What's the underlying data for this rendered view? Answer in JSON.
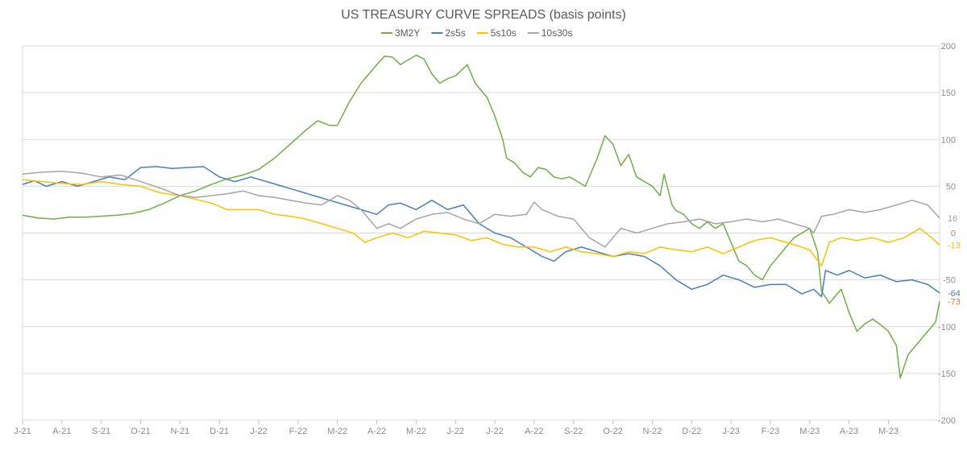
{
  "chart_data": {
    "type": "line",
    "title": "US TREASURY CURVE SPREADS (basis points)",
    "xlabel": "",
    "ylabel": "",
    "ylim": [
      -200,
      200
    ],
    "y_ticks": [
      200,
      150,
      100,
      50,
      0,
      -50,
      -100,
      -150,
      -200
    ],
    "y_axis_side": "right",
    "x_tick_labels": [
      "J-21",
      "A-21",
      "S-21",
      "O-21",
      "N-21",
      "D-21",
      "J-22",
      "F-22",
      "M-22",
      "A-22",
      "M-22",
      "J-22",
      "J-22",
      "A-22",
      "S-22",
      "O-22",
      "N-22",
      "D-22",
      "J-23",
      "F-23",
      "M-23",
      "A-23",
      "M-23"
    ],
    "grid": "horizontal",
    "legend_position": "top",
    "x_index_range": [
      0,
      23.3
    ],
    "series": [
      {
        "name": "3M2Y",
        "color": "#70ad47",
        "end_label": "",
        "points": [
          [
            0,
            19
          ],
          [
            0.4,
            16
          ],
          [
            0.8,
            15
          ],
          [
            1.2,
            17
          ],
          [
            1.6,
            17
          ],
          [
            2,
            18
          ],
          [
            2.4,
            19
          ],
          [
            2.8,
            21
          ],
          [
            3.2,
            25
          ],
          [
            3.6,
            32
          ],
          [
            4,
            40
          ],
          [
            4.4,
            45
          ],
          [
            4.8,
            52
          ],
          [
            5.2,
            58
          ],
          [
            5.6,
            62
          ],
          [
            6,
            68
          ],
          [
            6.4,
            80
          ],
          [
            6.8,
            95
          ],
          [
            7.2,
            110
          ],
          [
            7.5,
            120
          ],
          [
            7.8,
            115
          ],
          [
            8,
            115
          ],
          [
            8.3,
            140
          ],
          [
            8.6,
            160
          ],
          [
            8.8,
            170
          ],
          [
            9,
            180
          ],
          [
            9.2,
            189
          ],
          [
            9.4,
            188
          ],
          [
            9.6,
            180
          ],
          [
            9.8,
            185
          ],
          [
            10,
            190
          ],
          [
            10.2,
            186
          ],
          [
            10.4,
            170
          ],
          [
            10.6,
            160
          ],
          [
            10.8,
            165
          ],
          [
            11,
            168
          ],
          [
            11.3,
            180
          ],
          [
            11.5,
            160
          ],
          [
            11.8,
            145
          ],
          [
            12,
            125
          ],
          [
            12.2,
            100
          ],
          [
            12.3,
            80
          ],
          [
            12.5,
            75
          ],
          [
            12.7,
            65
          ],
          [
            12.9,
            60
          ],
          [
            13.1,
            70
          ],
          [
            13.3,
            68
          ],
          [
            13.5,
            60
          ],
          [
            13.7,
            58
          ],
          [
            13.9,
            60
          ],
          [
            14.1,
            55
          ],
          [
            14.3,
            50
          ],
          [
            14.6,
            80
          ],
          [
            14.8,
            104
          ],
          [
            15,
            95
          ],
          [
            15.2,
            72
          ],
          [
            15.4,
            84
          ],
          [
            15.6,
            60
          ],
          [
            15.8,
            55
          ],
          [
            16,
            50
          ],
          [
            16.2,
            40
          ],
          [
            16.3,
            63
          ],
          [
            16.5,
            30
          ],
          [
            16.6,
            24
          ],
          [
            16.8,
            20
          ],
          [
            17,
            10
          ],
          [
            17.2,
            5
          ],
          [
            17.4,
            12
          ],
          [
            17.6,
            5
          ],
          [
            17.8,
            10
          ],
          [
            18,
            -10
          ],
          [
            18.2,
            -30
          ],
          [
            18.4,
            -35
          ],
          [
            18.6,
            -45
          ],
          [
            18.8,
            -50
          ],
          [
            19,
            -35
          ],
          [
            19.2,
            -25
          ],
          [
            19.4,
            -15
          ],
          [
            19.6,
            -5
          ],
          [
            19.8,
            0
          ],
          [
            20,
            5
          ],
          [
            20.2,
            -20
          ],
          [
            20.3,
            -62
          ],
          [
            20.5,
            -75
          ],
          [
            20.6,
            -70
          ],
          [
            20.8,
            -60
          ],
          [
            21,
            -85
          ],
          [
            21.2,
            -105
          ],
          [
            21.4,
            -97
          ],
          [
            21.6,
            -92
          ],
          [
            21.8,
            -98
          ],
          [
            22,
            -105
          ],
          [
            22.2,
            -120
          ],
          [
            22.3,
            -155
          ],
          [
            22.5,
            -130
          ],
          [
            22.7,
            -120
          ],
          [
            22.9,
            -110
          ],
          [
            23.1,
            -100
          ],
          [
            23.2,
            -95
          ],
          [
            23.3,
            -73
          ]
        ]
      },
      {
        "name": "2s5s",
        "color": "#4a7ebb",
        "end_label": "-64",
        "points": [
          [
            0,
            52
          ],
          [
            0.3,
            56
          ],
          [
            0.6,
            50
          ],
          [
            1,
            55
          ],
          [
            1.4,
            50
          ],
          [
            1.8,
            55
          ],
          [
            2.2,
            60
          ],
          [
            2.6,
            57
          ],
          [
            3,
            70
          ],
          [
            3.4,
            71
          ],
          [
            3.8,
            69
          ],
          [
            4.2,
            70
          ],
          [
            4.6,
            71
          ],
          [
            5,
            60
          ],
          [
            5.4,
            55
          ],
          [
            5.8,
            60
          ],
          [
            6.2,
            55
          ],
          [
            6.6,
            50
          ],
          [
            7,
            45
          ],
          [
            7.4,
            40
          ],
          [
            7.8,
            35
          ],
          [
            8.2,
            30
          ],
          [
            8.6,
            25
          ],
          [
            9,
            20
          ],
          [
            9.3,
            30
          ],
          [
            9.6,
            32
          ],
          [
            10,
            25
          ],
          [
            10.4,
            35
          ],
          [
            10.8,
            25
          ],
          [
            11.2,
            30
          ],
          [
            11.6,
            10
          ],
          [
            12,
            0
          ],
          [
            12.4,
            -5
          ],
          [
            12.8,
            -15
          ],
          [
            13.2,
            -25
          ],
          [
            13.5,
            -30
          ],
          [
            13.8,
            -20
          ],
          [
            14.2,
            -15
          ],
          [
            14.6,
            -20
          ],
          [
            15,
            -25
          ],
          [
            15.4,
            -22
          ],
          [
            15.8,
            -25
          ],
          [
            16.2,
            -35
          ],
          [
            16.6,
            -50
          ],
          [
            17,
            -60
          ],
          [
            17.4,
            -55
          ],
          [
            17.8,
            -45
          ],
          [
            18.2,
            -50
          ],
          [
            18.6,
            -58
          ],
          [
            19,
            -55
          ],
          [
            19.4,
            -55
          ],
          [
            19.8,
            -65
          ],
          [
            20.1,
            -60
          ],
          [
            20.3,
            -68
          ],
          [
            20.4,
            -40
          ],
          [
            20.7,
            -45
          ],
          [
            21,
            -40
          ],
          [
            21.4,
            -48
          ],
          [
            21.8,
            -45
          ],
          [
            22.2,
            -52
          ],
          [
            22.6,
            -50
          ],
          [
            23,
            -55
          ],
          [
            23.3,
            -64
          ]
        ]
      },
      {
        "name": "5s10s",
        "color": "#ffc000",
        "end_label": "-13",
        "points": [
          [
            0,
            57
          ],
          [
            0.5,
            55
          ],
          [
            1,
            53
          ],
          [
            1.5,
            52
          ],
          [
            2,
            55
          ],
          [
            2.5,
            52
          ],
          [
            3,
            50
          ],
          [
            3.5,
            43
          ],
          [
            4,
            40
          ],
          [
            4.4,
            36
          ],
          [
            4.8,
            32
          ],
          [
            5.2,
            25
          ],
          [
            5.6,
            25
          ],
          [
            6,
            25
          ],
          [
            6.4,
            20
          ],
          [
            6.8,
            18
          ],
          [
            7.2,
            15
          ],
          [
            7.6,
            10
          ],
          [
            8,
            5
          ],
          [
            8.4,
            0
          ],
          [
            8.7,
            -10
          ],
          [
            9,
            -5
          ],
          [
            9.4,
            0
          ],
          [
            9.8,
            -5
          ],
          [
            10.2,
            2
          ],
          [
            10.6,
            0
          ],
          [
            11,
            -2
          ],
          [
            11.4,
            -8
          ],
          [
            11.8,
            -5
          ],
          [
            12.2,
            -12
          ],
          [
            12.6,
            -15
          ],
          [
            13,
            -15
          ],
          [
            13.4,
            -20
          ],
          [
            13.8,
            -15
          ],
          [
            14.2,
            -20
          ],
          [
            14.6,
            -22
          ],
          [
            15,
            -25
          ],
          [
            15.4,
            -20
          ],
          [
            15.8,
            -22
          ],
          [
            16.2,
            -15
          ],
          [
            16.6,
            -18
          ],
          [
            17,
            -20
          ],
          [
            17.4,
            -15
          ],
          [
            17.8,
            -22
          ],
          [
            18.2,
            -15
          ],
          [
            18.6,
            -8
          ],
          [
            19,
            -5
          ],
          [
            19.4,
            -10
          ],
          [
            19.8,
            -15
          ],
          [
            20,
            -18
          ],
          [
            20.3,
            -35
          ],
          [
            20.5,
            -10
          ],
          [
            20.8,
            -5
          ],
          [
            21.2,
            -8
          ],
          [
            21.6,
            -5
          ],
          [
            22,
            -10
          ],
          [
            22.4,
            -5
          ],
          [
            22.8,
            5
          ],
          [
            23.1,
            -5
          ],
          [
            23.3,
            -13
          ]
        ]
      },
      {
        "name": "10s30s",
        "color": "#a5a5a5",
        "end_label": "16",
        "points": [
          [
            0,
            63
          ],
          [
            0.5,
            65
          ],
          [
            1,
            66
          ],
          [
            1.5,
            64
          ],
          [
            2,
            60
          ],
          [
            2.5,
            62
          ],
          [
            3,
            55
          ],
          [
            3.5,
            48
          ],
          [
            4,
            40
          ],
          [
            4.4,
            38
          ],
          [
            4.8,
            40
          ],
          [
            5.2,
            42
          ],
          [
            5.6,
            45
          ],
          [
            6,
            40
          ],
          [
            6.4,
            38
          ],
          [
            6.8,
            35
          ],
          [
            7.2,
            32
          ],
          [
            7.6,
            30
          ],
          [
            8,
            40
          ],
          [
            8.3,
            35
          ],
          [
            8.6,
            25
          ],
          [
            9,
            5
          ],
          [
            9.3,
            10
          ],
          [
            9.6,
            5
          ],
          [
            10,
            15
          ],
          [
            10.4,
            20
          ],
          [
            10.8,
            22
          ],
          [
            11.2,
            15
          ],
          [
            11.6,
            10
          ],
          [
            12,
            20
          ],
          [
            12.4,
            18
          ],
          [
            12.8,
            20
          ],
          [
            13,
            33
          ],
          [
            13.2,
            25
          ],
          [
            13.6,
            18
          ],
          [
            14,
            15
          ],
          [
            14.4,
            -5
          ],
          [
            14.8,
            -15
          ],
          [
            15,
            -5
          ],
          [
            15.2,
            5
          ],
          [
            15.6,
            0
          ],
          [
            16,
            5
          ],
          [
            16.4,
            10
          ],
          [
            16.8,
            12
          ],
          [
            17.2,
            15
          ],
          [
            17.6,
            10
          ],
          [
            18,
            12
          ],
          [
            18.4,
            15
          ],
          [
            18.8,
            12
          ],
          [
            19.2,
            15
          ],
          [
            19.6,
            10
          ],
          [
            20,
            5
          ],
          [
            20.1,
            0
          ],
          [
            20.3,
            18
          ],
          [
            20.6,
            20
          ],
          [
            21,
            25
          ],
          [
            21.4,
            22
          ],
          [
            21.8,
            25
          ],
          [
            22.2,
            30
          ],
          [
            22.6,
            35
          ],
          [
            23,
            30
          ],
          [
            23.3,
            16
          ]
        ]
      }
    ]
  }
}
